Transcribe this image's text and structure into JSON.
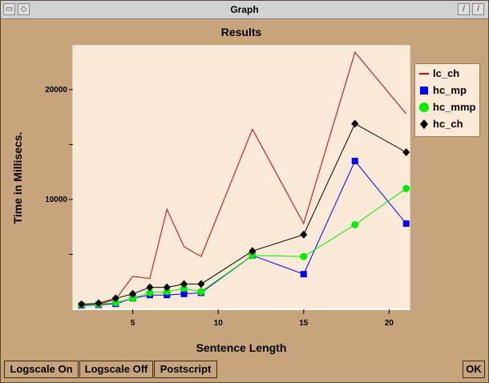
{
  "window": {
    "title": "Graph"
  },
  "chart_data": {
    "type": "line",
    "title": "Results",
    "xlabel": "Sentence Length",
    "ylabel": "Time in Millisecs.",
    "xlim": [
      1.5,
      21.2
    ],
    "ylim": [
      0,
      24000
    ],
    "xticks": [
      5,
      10,
      15,
      20
    ],
    "yticks_labeled": [
      10000,
      20000
    ],
    "yticks": [
      5000,
      10000,
      15000,
      20000
    ],
    "grid": false,
    "legend_position": "right",
    "series": [
      {
        "name": "lc_ch",
        "marker": "none",
        "color": "#d00000",
        "x": [
          2,
          3,
          4,
          5,
          6,
          7,
          8,
          9,
          12,
          15,
          18,
          21
        ],
        "y": [
          350,
          450,
          900,
          3000,
          2800,
          9100,
          5700,
          4800,
          16400,
          7800,
          23400,
          17800
        ]
      },
      {
        "name": "hc_mp",
        "marker": "square",
        "color": "#0000ff",
        "x": [
          2,
          3,
          4,
          5,
          6,
          7,
          8,
          9,
          12,
          15,
          18,
          21
        ],
        "y": [
          350,
          400,
          500,
          1000,
          1300,
          1300,
          1400,
          1500,
          4900,
          3200,
          13500,
          7800
        ]
      },
      {
        "name": "hc_mmp",
        "marker": "circle",
        "color": "#00ee00",
        "x": [
          2,
          3,
          4,
          5,
          6,
          7,
          8,
          9,
          12,
          15,
          18,
          21
        ],
        "y": [
          400,
          450,
          600,
          1000,
          1500,
          1600,
          1900,
          1600,
          4900,
          4800,
          7700,
          11000
        ]
      },
      {
        "name": "hc_ch",
        "marker": "diamond",
        "color": "#000000",
        "x": [
          2,
          3,
          4,
          5,
          6,
          7,
          8,
          9,
          12,
          15,
          18,
          21
        ],
        "y": [
          450,
          550,
          1000,
          1400,
          2000,
          2000,
          2300,
          2300,
          5300,
          6800,
          16900,
          14300
        ]
      }
    ]
  },
  "buttons": {
    "logscale_on": "Logscale On",
    "logscale_off": "Logscale Off",
    "postscript": "Postscript",
    "ok": "OK"
  },
  "colors": {
    "background": "#c8a47c",
    "plot_area": "#fbead8"
  }
}
